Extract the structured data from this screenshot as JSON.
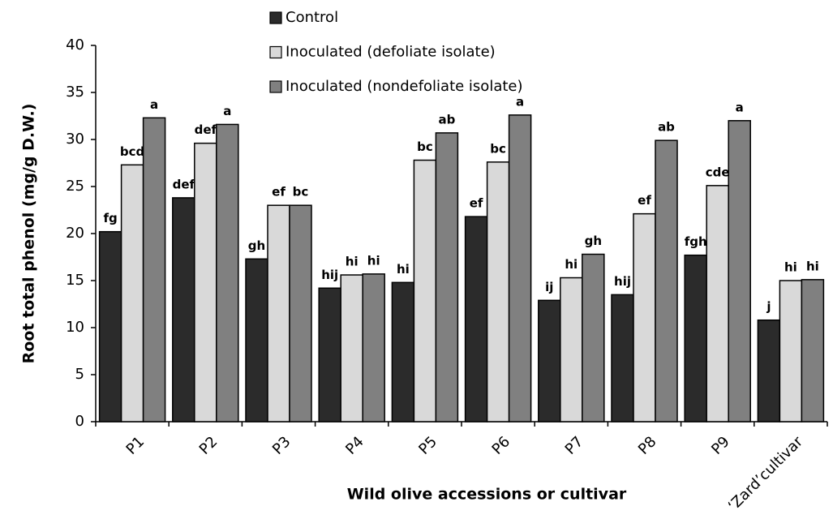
{
  "chart_data": {
    "type": "bar",
    "y_label": "Root total phenol (mg/g D.W.)",
    "x_label": "Wild olive accessions or cultivar",
    "categories": [
      "P1",
      "P2",
      "P3",
      "P4",
      "P5",
      "P6",
      "P7",
      "P8",
      "P9",
      "‘Zard’cultivar"
    ],
    "series": [
      {
        "name": "Control",
        "color": "#2b2b2b",
        "values": [
          20.2,
          23.8,
          17.3,
          14.2,
          14.8,
          21.8,
          12.9,
          13.5,
          17.7,
          10.8
        ],
        "letters": [
          "fg",
          "def",
          "gh",
          "hij",
          "hi",
          "ef",
          "ij",
          "hij",
          "fgh",
          "j"
        ]
      },
      {
        "name": "Inoculated (defoliate isolate)",
        "color": "#d9d9d9",
        "values": [
          27.3,
          29.6,
          23.0,
          15.6,
          27.8,
          27.6,
          15.3,
          22.1,
          25.1,
          15.0
        ],
        "letters": [
          "bcd",
          "def",
          "ef",
          "hi",
          "bc",
          "bc",
          "hi",
          "ef",
          "cde",
          "hi"
        ]
      },
      {
        "name": "Inoculated (nondefoliate isolate)",
        "color": "#808080",
        "values": [
          32.3,
          31.6,
          23.0,
          15.7,
          30.7,
          32.6,
          17.8,
          29.9,
          32.0,
          15.1
        ],
        "letters": [
          "a",
          "a",
          "bc",
          "hi",
          "ab",
          "a",
          "gh",
          "ab",
          "a",
          "hi"
        ]
      }
    ],
    "ylim": [
      0,
      40
    ],
    "yticks": [
      0,
      5,
      10,
      15,
      20,
      25,
      30,
      35,
      40
    ],
    "grid": false
  }
}
